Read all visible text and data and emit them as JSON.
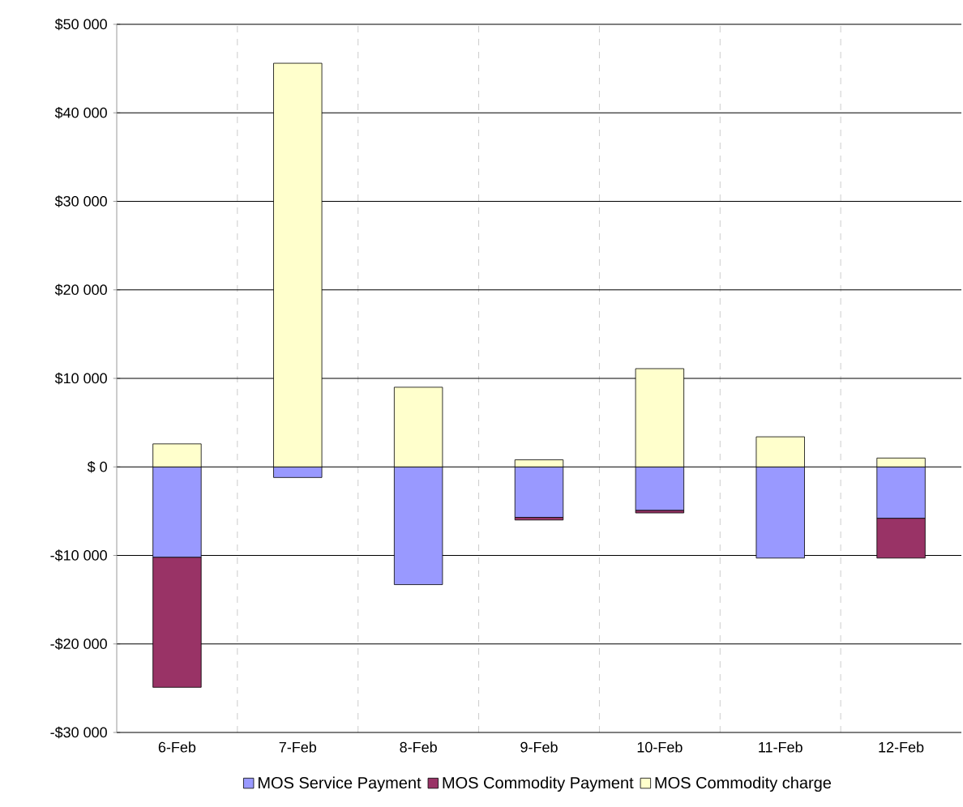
{
  "chart_data": {
    "type": "bar",
    "stacked": true,
    "categories": [
      "6-Feb",
      "7-Feb",
      "8-Feb",
      "9-Feb",
      "10-Feb",
      "11-Feb",
      "12-Feb"
    ],
    "series": [
      {
        "name": "MOS Service Payment",
        "color": "#9999ff",
        "values": [
          -10200,
          -1200,
          -13300,
          -5700,
          -4900,
          -10300,
          -5800
        ]
      },
      {
        "name": "MOS Commodity Payment",
        "color": "#993366",
        "values": [
          -14700,
          0,
          0,
          -300,
          -300,
          0,
          -4500
        ]
      },
      {
        "name": "MOS Commodity charge",
        "color": "#ffffcc",
        "values": [
          2600,
          45600,
          9000,
          800,
          11100,
          3400,
          1000
        ]
      }
    ],
    "ylim": [
      -30000,
      50000
    ],
    "yticks": [
      {
        "value": -30000,
        "label": "-$30 000"
      },
      {
        "value": -20000,
        "label": "-$20 000"
      },
      {
        "value": -10000,
        "label": "-$10 000"
      },
      {
        "value": 0,
        "label": "$ 0"
      },
      {
        "value": 10000,
        "label": "$10 000"
      },
      {
        "value": 20000,
        "label": "$20 000"
      },
      {
        "value": 30000,
        "label": "$30 000"
      },
      {
        "value": 40000,
        "label": "$40 000"
      },
      {
        "value": 50000,
        "label": "$50 000"
      }
    ],
    "grid": true,
    "legend": "bottom"
  }
}
